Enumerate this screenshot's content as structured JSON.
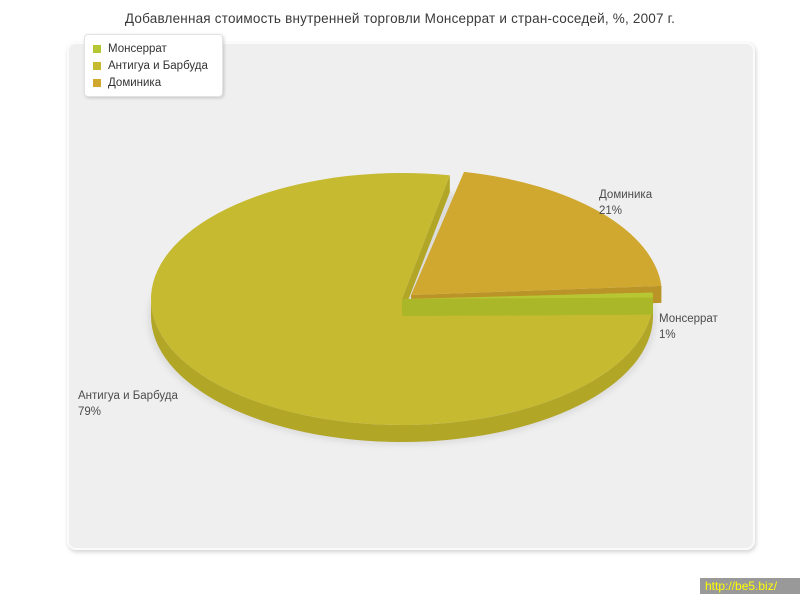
{
  "chart_data": {
    "type": "pie",
    "style": "3d-exploded",
    "title": "Добавленная стоимость внутренней торговли Монсеррат и стран-соседей, %, 2007 г.",
    "unit": "%",
    "legend_position": "top-left",
    "labels_outside": true,
    "slices": [
      {
        "label": "Монсеррат",
        "value": 1,
        "pct_label": "1%",
        "color": "#b7c733",
        "side_color": "#a9b728",
        "exploded": false
      },
      {
        "label": "Доминика",
        "value": 21,
        "pct_label": "21%",
        "color": "#d0a72f",
        "side_color": "#bb9427",
        "exploded": true
      },
      {
        "label": "Антигуа и Барбуда",
        "value": 79,
        "pct_label": "79%",
        "color": "#c6ba31",
        "side_color": "#b2a626",
        "exploded": false
      }
    ]
  },
  "legend": {
    "items": [
      {
        "label": "Монсеррат",
        "color": "#b7c733"
      },
      {
        "label": "Антигуа и Барбуда",
        "color": "#c6ba31"
      },
      {
        "label": "Доминика",
        "color": "#d0a72f"
      }
    ]
  },
  "panel": {
    "background": "#efefef"
  },
  "watermark": {
    "text": "http://be5.biz/",
    "background": "#999999",
    "color": "#ffff00"
  }
}
